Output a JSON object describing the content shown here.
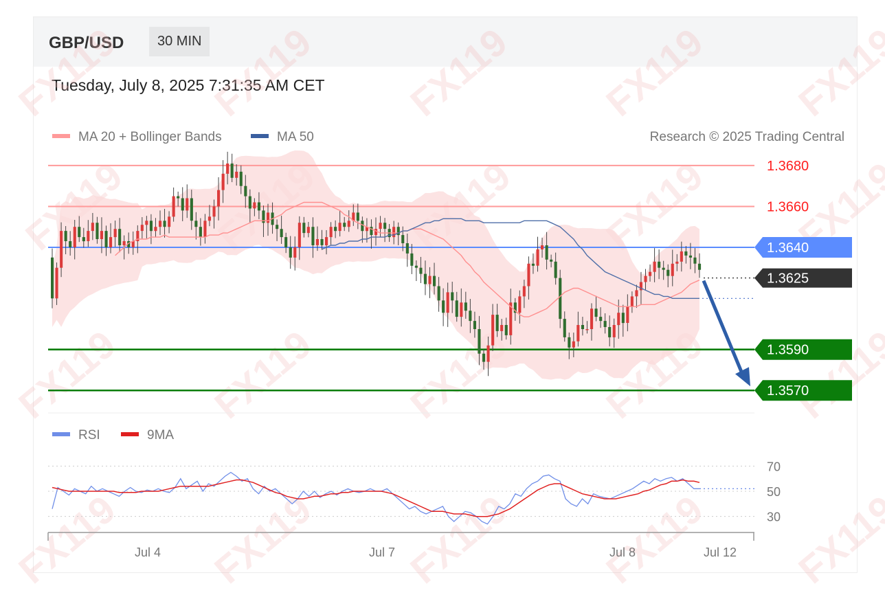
{
  "header": {
    "symbol": "GBP/USD",
    "timeframe": "30 MIN",
    "datetime": "Tuesday, July 8, 2025 7:31:35 AM CET",
    "copyright": "Research © 2025 Trading Central"
  },
  "watermark": "FX119",
  "colors": {
    "up": "#dc3b3b",
    "down": "#2f6d2f",
    "ma20": "#ff8f8f",
    "ma50": "#4f6fa8",
    "band": "#fbd9d9",
    "resistance": "#ff9a9a",
    "pivot": "#5b8cff",
    "support": "#0b7d0b",
    "current": "#333333",
    "arrow": "#2e5ea8",
    "rsi": "#6f8ee8",
    "rsi_ma": "#e02020"
  },
  "chart_data": [
    {
      "type": "candlestick",
      "legend": [
        {
          "name": "MA 20 + Bollinger Bands",
          "color": "#ff8f8f"
        },
        {
          "name": "MA 50",
          "color": "#3a5fa0"
        }
      ],
      "x_ticks": [
        "Jul 4",
        "Jul 7",
        "Jul 8",
        "Jul 12"
      ],
      "ylim": [
        1.356,
        1.3683
      ],
      "levels": [
        {
          "value": 1.368,
          "label": "1.3680",
          "kind": "resistance"
        },
        {
          "value": 1.366,
          "label": "1.3660",
          "kind": "resistance"
        },
        {
          "value": 1.364,
          "label": "1.3640",
          "kind": "pivot"
        },
        {
          "value": 1.3625,
          "label": "1.3625",
          "kind": "current"
        },
        {
          "value": 1.359,
          "label": "1.3590",
          "kind": "support"
        },
        {
          "value": 1.357,
          "label": "1.3570",
          "kind": "support"
        }
      ],
      "forecast": {
        "from": 1.3625,
        "to": 1.357
      },
      "close": [
        1.3615,
        1.363,
        1.3648,
        1.3643,
        1.364,
        1.365,
        1.3645,
        1.3643,
        1.3648,
        1.3652,
        1.3644,
        1.3648,
        1.364,
        1.3645,
        1.3649,
        1.3641,
        1.3643,
        1.364,
        1.3643,
        1.3648,
        1.3651,
        1.3653,
        1.3648,
        1.365,
        1.3653,
        1.365,
        1.3655,
        1.3665,
        1.3664,
        1.3658,
        1.3664,
        1.3653,
        1.365,
        1.3645,
        1.3653,
        1.3655,
        1.366,
        1.3668,
        1.3676,
        1.3681,
        1.3674,
        1.3677,
        1.367,
        1.3665,
        1.3659,
        1.3662,
        1.3658,
        1.3652,
        1.3657,
        1.3651,
        1.3649,
        1.3645,
        1.364,
        1.3635,
        1.364,
        1.3652,
        1.3647,
        1.365,
        1.3641,
        1.3644,
        1.3641,
        1.3645,
        1.365,
        1.3648,
        1.3652,
        1.365,
        1.3653,
        1.3657,
        1.3653,
        1.3648,
        1.365,
        1.3646,
        1.3649,
        1.3652,
        1.3649,
        1.3645,
        1.365,
        1.3646,
        1.3642,
        1.3637,
        1.3631,
        1.363,
        1.3627,
        1.3622,
        1.3626,
        1.3621,
        1.3614,
        1.3608,
        1.3618,
        1.3614,
        1.3606,
        1.3613,
        1.3609,
        1.3604,
        1.36,
        1.3588,
        1.3584,
        1.3592,
        1.3607,
        1.3599,
        1.3602,
        1.3597,
        1.3613,
        1.3608,
        1.3616,
        1.3621,
        1.3632,
        1.3631,
        1.3639,
        1.3641,
        1.3634,
        1.3633,
        1.3625,
        1.3605,
        1.3596,
        1.3591,
        1.3594,
        1.3602,
        1.36,
        1.36,
        1.361,
        1.3606,
        1.3604,
        1.3601,
        1.3596,
        1.3602,
        1.3608,
        1.3603,
        1.3611,
        1.3616,
        1.3619,
        1.3623,
        1.3626,
        1.3628,
        1.3633,
        1.363,
        1.3629,
        1.3626,
        1.3632,
        1.3633,
        1.3638,
        1.3636,
        1.3635,
        1.3632,
        1.3629
      ],
      "ma20": [
        1.3636,
        1.3638,
        1.364,
        1.3642,
        1.3643,
        1.3644,
        1.3644,
        1.3644,
        1.3645,
        1.3645,
        1.3645,
        1.3646,
        1.3645,
        1.3645,
        1.3645,
        1.3645,
        1.3645,
        1.3645,
        1.3645,
        1.3645,
        1.3645,
        1.3646,
        1.3646,
        1.3646,
        1.3647,
        1.3647,
        1.3648,
        1.3649,
        1.365,
        1.3651,
        1.3652,
        1.3653,
        1.3653,
        1.3653,
        1.3653,
        1.3654,
        1.3655,
        1.3656,
        1.3658,
        1.3659,
        1.366,
        1.3661,
        1.3662,
        1.3662,
        1.3662,
        1.3662,
        1.3662,
        1.3661,
        1.366,
        1.3659,
        1.3658,
        1.3656,
        1.3655,
        1.3653,
        1.3652,
        1.3651,
        1.365,
        1.3649,
        1.3648,
        1.3647,
        1.3647,
        1.3647,
        1.3647,
        1.3647,
        1.3648,
        1.3648,
        1.3649,
        1.3649,
        1.3649,
        1.3648,
        1.3647,
        1.3646,
        1.3645,
        1.3644,
        1.3642,
        1.364,
        1.3638,
        1.3636,
        1.3633,
        1.3631,
        1.3628,
        1.3626,
        1.3623,
        1.3621,
        1.3619,
        1.3617,
        1.3615,
        1.3613,
        1.3611,
        1.3609,
        1.3607,
        1.3606,
        1.3606,
        1.3607,
        1.3608,
        1.3609,
        1.361,
        1.3612,
        1.3614,
        1.3616,
        1.3618,
        1.3619,
        1.362,
        1.362,
        1.3619,
        1.3618,
        1.3617,
        1.3616,
        1.3615,
        1.3614,
        1.3613,
        1.3612,
        1.3611,
        1.3611,
        1.3611,
        1.3611,
        1.3611,
        1.3612,
        1.3612,
        1.3612,
        1.3612,
        1.3613,
        1.3614,
        1.3615,
        1.3616,
        1.3617,
        1.3618,
        1.362,
        1.3622,
        1.3623,
        1.3624
      ],
      "ma50": [
        1.3639,
        1.364,
        1.3641,
        1.3641,
        1.3642,
        1.3642,
        1.3643,
        1.3643,
        1.3643,
        1.3644,
        1.3644,
        1.3645,
        1.3645,
        1.3645,
        1.3645,
        1.3646,
        1.3646,
        1.3647,
        1.3648,
        1.3648,
        1.3649,
        1.365,
        1.3651,
        1.3652,
        1.3652,
        1.3653,
        1.3653,
        1.3654,
        1.3654,
        1.3654,
        1.3654,
        1.3654,
        1.3653,
        1.3653,
        1.3653,
        1.3653,
        1.3652,
        1.3652,
        1.3652,
        1.3652,
        1.3652,
        1.3652,
        1.3652,
        1.3652,
        1.3652,
        1.3653,
        1.3653,
        1.3653,
        1.3653,
        1.3653,
        1.3653,
        1.3652,
        1.3651,
        1.365,
        1.3648,
        1.3646,
        1.3644,
        1.3641,
        1.3639,
        1.3636,
        1.3634,
        1.3632,
        1.363,
        1.3628,
        1.3627,
        1.3626,
        1.3625,
        1.3624,
        1.3623,
        1.3622,
        1.3621,
        1.362,
        1.3619,
        1.3618,
        1.3617,
        1.3617,
        1.3616,
        1.3616,
        1.3615,
        1.3615,
        1.3615,
        1.3615,
        1.3615,
        1.3615,
        1.3615
      ]
    },
    {
      "type": "line",
      "legend": [
        {
          "name": "RSI",
          "color": "#6f8ee8"
        },
        {
          "name": "9MA",
          "color": "#e02020"
        }
      ],
      "ylim": [
        20,
        80
      ],
      "y_ticks": [
        70,
        50,
        30
      ],
      "rsi": [
        36,
        53,
        50,
        47,
        52,
        50,
        48,
        54,
        50,
        52,
        50,
        48,
        46,
        50,
        53,
        50,
        49,
        51,
        50,
        52,
        50,
        49,
        53,
        60,
        52,
        55,
        58,
        50,
        56,
        54,
        58,
        62,
        65,
        62,
        58,
        60,
        52,
        48,
        54,
        50,
        52,
        48,
        44,
        40,
        44,
        50,
        46,
        50,
        45,
        48,
        50,
        47,
        50,
        52,
        50,
        49,
        50,
        52,
        50,
        50,
        52,
        48,
        44,
        40,
        36,
        38,
        34,
        32,
        34,
        36,
        38,
        30,
        26,
        30,
        34,
        33,
        30,
        26,
        24,
        30,
        38,
        36,
        40,
        48,
        46,
        52,
        56,
        58,
        62,
        63,
        60,
        58,
        44,
        40,
        38,
        44,
        40,
        48,
        46,
        45,
        44,
        46,
        48,
        50,
        52,
        55,
        58,
        56,
        60,
        58,
        60,
        61,
        58,
        60,
        56,
        52,
        52
      ],
      "ma9": [
        53,
        52,
        51,
        50,
        50,
        50,
        50,
        50,
        50,
        50,
        50,
        50,
        49,
        49,
        49,
        49,
        50,
        50,
        50,
        50,
        51,
        52,
        53,
        54,
        54,
        54,
        54,
        54,
        54,
        55,
        56,
        57,
        58,
        59,
        59,
        58,
        57,
        55,
        53,
        51,
        49,
        48,
        46,
        45,
        44,
        44,
        45,
        46,
        46,
        47,
        48,
        48,
        49,
        49,
        50,
        50,
        50,
        50,
        50,
        50,
        49,
        48,
        46,
        44,
        42,
        40,
        38,
        36,
        34,
        34,
        34,
        33,
        32,
        32,
        32,
        31,
        30,
        30,
        30,
        31,
        32,
        34,
        36,
        39,
        42,
        45,
        48,
        51,
        53,
        55,
        56,
        56,
        54,
        52,
        50,
        48,
        47,
        46,
        45,
        44,
        44,
        44,
        45,
        46,
        47,
        48,
        50,
        51,
        53,
        55,
        56,
        58,
        58,
        59,
        58,
        58,
        57
      ]
    }
  ]
}
